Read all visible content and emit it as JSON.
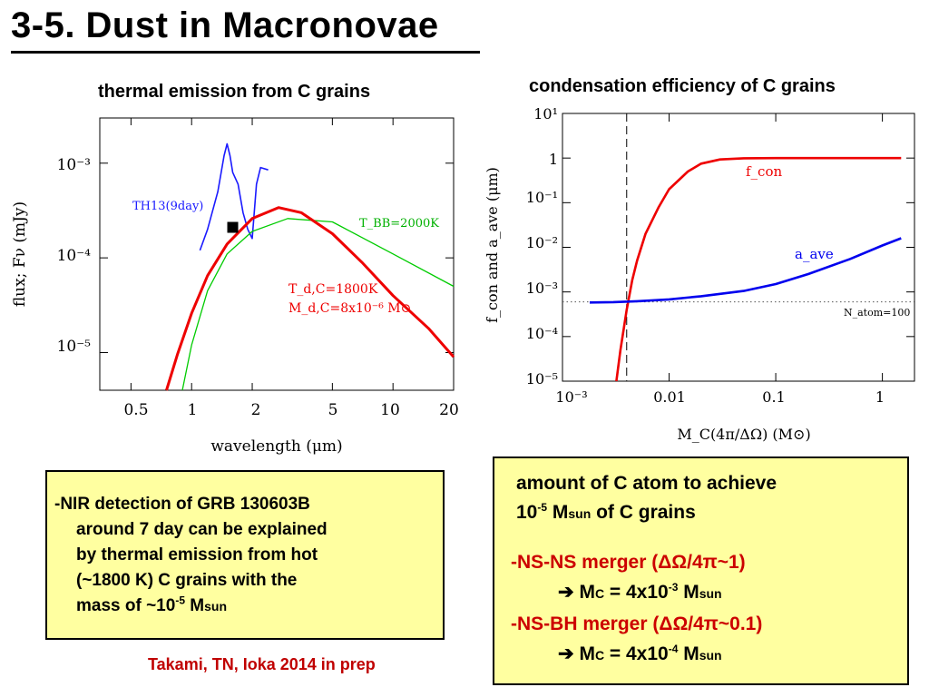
{
  "slide": {
    "title": "3-5. Dust in Macronovae",
    "citation": "Takami, TN, Ioka 2014  in prep"
  },
  "left_plot": {
    "caption": "thermal emission from C grains",
    "ylabel": "flux; Fν (mJy)",
    "xlabel": "wavelength (μm)",
    "x_ticks": [
      "0.5",
      "1",
      "2",
      "5",
      "10",
      "20"
    ],
    "y_ticks": [
      "10⁻³",
      "10⁻⁴",
      "10⁻⁵"
    ],
    "labels": {
      "th13": "TH13(9day)",
      "tbb": "T_BB=2000K",
      "td": "T_d,C=1800K",
      "md": "M_d,C=8x10⁻⁶ M⊙"
    }
  },
  "right_plot": {
    "caption": "condensation efficiency of C grains",
    "ylabel": "f_con and a_ave (μm)",
    "xlabel": "M_C(4π/ΔΩ) (M⊙)",
    "x_ticks": [
      "10⁻³",
      "0.01",
      "0.1",
      "1"
    ],
    "y_ticks": [
      "10¹",
      "1",
      "10⁻¹",
      "10⁻²",
      "10⁻³",
      "10⁻⁴",
      "10⁻⁵"
    ],
    "labels": {
      "fcon": "f_con",
      "aave": "a_ave",
      "natom": "N_atom=100"
    }
  },
  "chart_data": [
    {
      "type": "line",
      "title": "thermal emission from C grains",
      "xlabel": "wavelength (μm)",
      "ylabel": "flux; Fν (mJy)",
      "x_scale": "log",
      "y_scale": "log",
      "xlim": [
        0.35,
        20
      ],
      "ylim": [
        4e-06,
        0.003
      ],
      "series": [
        {
          "name": "TH13(9day)",
          "color": "#1a1aff",
          "x": [
            1.1,
            1.2,
            1.35,
            1.45,
            1.5,
            1.55,
            1.6,
            1.7,
            1.8,
            1.9,
            2.0,
            2.1,
            2.2,
            2.4
          ],
          "y": [
            0.00012,
            0.0002,
            0.0005,
            0.0012,
            0.0016,
            0.0012,
            0.0008,
            0.0006,
            0.0003,
            0.0002,
            0.00016,
            0.0006,
            0.0009,
            0.00085
          ]
        },
        {
          "name": "T_BB=2000K",
          "color": "#00cc00",
          "x": [
            0.9,
            1.0,
            1.2,
            1.5,
            2.0,
            3.0,
            5.0,
            10.0,
            20.0
          ],
          "y": [
            4e-06,
            1.2e-05,
            4.5e-05,
            0.00011,
            0.00019,
            0.00026,
            0.00024,
            0.00011,
            5e-05
          ]
        },
        {
          "name": "T_d,C=1800K",
          "color": "#ee0000",
          "x": [
            0.75,
            0.85,
            1.0,
            1.2,
            1.5,
            2.0,
            2.7,
            3.5,
            5.0,
            7.0,
            10.0,
            15.0,
            20.0
          ],
          "y": [
            4e-06,
            9.5e-06,
            2.6e-05,
            6.5e-05,
            0.00014,
            0.00026,
            0.00034,
            0.0003,
            0.00018,
            9e-05,
            4e-05,
            1.8e-05,
            9e-06
          ]
        },
        {
          "name": "data point",
          "color": "#000000",
          "x": [
            1.6
          ],
          "y": [
            0.00021
          ]
        }
      ]
    },
    {
      "type": "line",
      "title": "condensation efficiency of C grains",
      "xlabel": "M_C(4π/ΔΩ) (M⊙)",
      "ylabel": "f_con and a_ave (μm)",
      "x_scale": "log",
      "y_scale": "log",
      "xlim": [
        0.001,
        2
      ],
      "ylim": [
        1e-05,
        10
      ],
      "vline_x": 0.004,
      "hline_y": 0.0006,
      "series": [
        {
          "name": "f_con",
          "color": "#ee0000",
          "x": [
            0.0032,
            0.0035,
            0.004,
            0.0045,
            0.005,
            0.006,
            0.008,
            0.01,
            0.015,
            0.02,
            0.03,
            0.05,
            0.1,
            0.3,
            1.0,
            1.5
          ],
          "y": [
            1e-05,
            5e-05,
            0.0004,
            0.0018,
            0.005,
            0.02,
            0.08,
            0.2,
            0.5,
            0.75,
            0.93,
            0.99,
            1.0,
            1.0,
            1.0,
            1.0
          ]
        },
        {
          "name": "a_ave",
          "color": "#0000ee",
          "x": [
            0.0018,
            0.003,
            0.005,
            0.01,
            0.02,
            0.05,
            0.1,
            0.2,
            0.5,
            1.0,
            1.5
          ],
          "y": [
            0.00058,
            0.00059,
            0.00062,
            0.00068,
            0.0008,
            0.00105,
            0.0015,
            0.0025,
            0.0055,
            0.011,
            0.016
          ]
        }
      ]
    }
  ],
  "left_box": {
    "line1": "-NIR detection of GRB 130603B",
    "line2": "around 7 day can be explained",
    "line3": "by thermal emission from hot",
    "line4": "(~1800 K) C grains with the",
    "line5_pre": "mass of ~10",
    "line5_sup": "-5",
    "line5_unit": " M",
    "line5_sub": "sun"
  },
  "right_box": {
    "h1": "amount of C atom to achieve",
    "h2_base": "10",
    "h2_sup": "-5",
    "h2_m": " M",
    "h2_sun": "sun",
    "h2_rest": " of C grains",
    "nsns": "-NS-NS merger (ΔΩ/4π~1)",
    "res1_arrow": "➔",
    "res1_pre": " M",
    "res1_c": "C",
    "res1_mid": " = 4x10",
    "res1_sup": "-3",
    "res1_m": " M",
    "res1_sun": "sun",
    "nsbh": "-NS-BH merger (ΔΩ/4π~0.1)",
    "res2_arrow": "➔",
    "res2_pre": " M",
    "res2_c": "C",
    "res2_mid": " = 4x10",
    "res2_sup": "-4",
    "res2_m": " M",
    "res2_sun": "sun"
  }
}
